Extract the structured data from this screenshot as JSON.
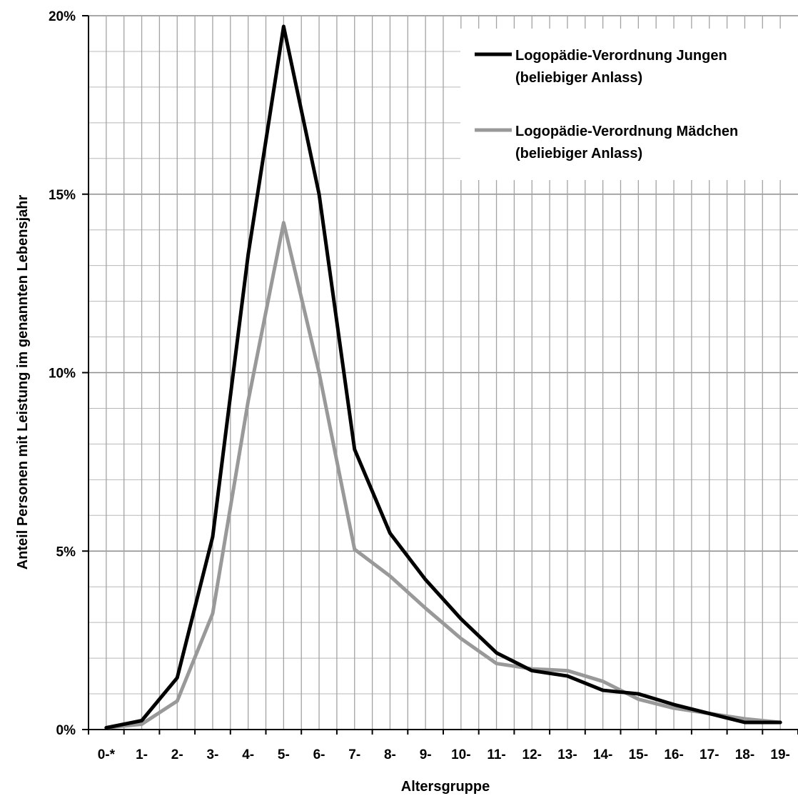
{
  "chart_data": {
    "type": "line",
    "title": "",
    "xlabel": "Altersgruppe",
    "ylabel": "Anteil Personen mit Leistung im genannten Lebensjahr",
    "categories": [
      "0-*",
      "1-",
      "2-",
      "3-",
      "4-",
      "5-",
      "6-",
      "7-",
      "8-",
      "9-",
      "10-",
      "11-",
      "12-",
      "13-",
      "14-",
      "15-",
      "16-",
      "17-",
      "18-",
      "19-"
    ],
    "ylim": [
      0,
      20
    ],
    "yticks": [
      0,
      5,
      10,
      15,
      20
    ],
    "ytick_labels": [
      "0%",
      "5%",
      "10%",
      "15%",
      "20%"
    ],
    "grid": "major and minor gridlines",
    "legend_position": "top-right",
    "series": [
      {
        "name": "Logopädie-Verordnung Jungen",
        "name_line2": "(beliebiger Anlass)",
        "color": "#000000",
        "values": [
          0.05,
          0.25,
          1.45,
          5.4,
          13.3,
          19.7,
          15.0,
          7.85,
          5.5,
          4.2,
          3.1,
          2.15,
          1.65,
          1.5,
          1.1,
          1.0,
          0.7,
          0.45,
          0.2,
          0.2
        ]
      },
      {
        "name": "Logopädie-Verordnung Mädchen",
        "name_line2": "(beliebiger Anlass)",
        "color": "#999999",
        "values": [
          0.05,
          0.15,
          0.8,
          3.25,
          9.2,
          14.2,
          10.0,
          5.05,
          4.3,
          3.4,
          2.55,
          1.85,
          1.7,
          1.65,
          1.35,
          0.85,
          0.6,
          0.45,
          0.3,
          0.2
        ]
      }
    ]
  }
}
